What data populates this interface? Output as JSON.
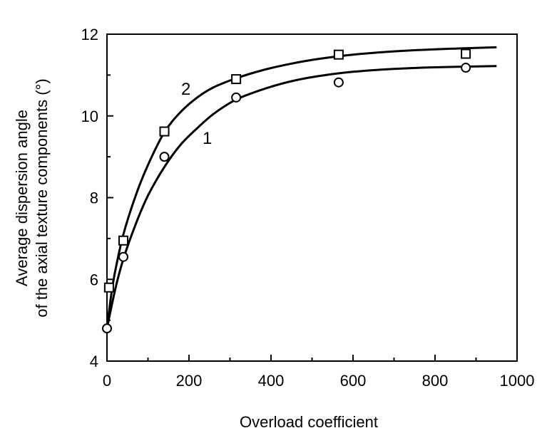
{
  "chart_data": {
    "type": "scatter",
    "title": "",
    "xlabel": "Overload coefficient",
    "ylabel_lines": [
      "Average dispersion angle",
      "of the axial  texture components (°)"
    ],
    "xlim": [
      0,
      1000
    ],
    "ylim": [
      4,
      12
    ],
    "x_ticks": [
      0,
      200,
      400,
      600,
      800,
      1000
    ],
    "y_ticks": [
      4,
      6,
      8,
      10,
      12
    ],
    "grid": false,
    "legend": "none",
    "series": [
      {
        "label": "1",
        "marker": "circle",
        "points": [
          [
            0,
            4.8
          ],
          [
            40,
            6.55
          ],
          [
            140,
            9.0
          ],
          [
            315,
            10.45
          ],
          [
            565,
            10.82
          ],
          [
            875,
            11.18
          ]
        ],
        "fit_curve": [
          [
            0,
            4.8
          ],
          [
            20,
            5.75
          ],
          [
            40,
            6.5
          ],
          [
            70,
            7.35
          ],
          [
            100,
            8.05
          ],
          [
            140,
            8.75
          ],
          [
            180,
            9.3
          ],
          [
            220,
            9.7
          ],
          [
            260,
            10.05
          ],
          [
            315,
            10.4
          ],
          [
            380,
            10.65
          ],
          [
            450,
            10.85
          ],
          [
            520,
            10.98
          ],
          [
            600,
            11.08
          ],
          [
            700,
            11.15
          ],
          [
            800,
            11.19
          ],
          [
            950,
            11.22
          ]
        ]
      },
      {
        "label": "2",
        "marker": "square",
        "points": [
          [
            5,
            5.8
          ],
          [
            40,
            6.95
          ],
          [
            140,
            9.62
          ],
          [
            315,
            10.9
          ],
          [
            565,
            11.5
          ],
          [
            875,
            11.52
          ]
        ],
        "fit_curve": [
          [
            0,
            4.8
          ],
          [
            10,
            5.6
          ],
          [
            20,
            6.2
          ],
          [
            40,
            7.1
          ],
          [
            70,
            8.05
          ],
          [
            100,
            8.8
          ],
          [
            140,
            9.6
          ],
          [
            180,
            10.1
          ],
          [
            220,
            10.45
          ],
          [
            260,
            10.7
          ],
          [
            315,
            10.92
          ],
          [
            380,
            11.12
          ],
          [
            450,
            11.28
          ],
          [
            520,
            11.4
          ],
          [
            600,
            11.5
          ],
          [
            700,
            11.58
          ],
          [
            800,
            11.63
          ],
          [
            950,
            11.68
          ]
        ]
      }
    ]
  }
}
